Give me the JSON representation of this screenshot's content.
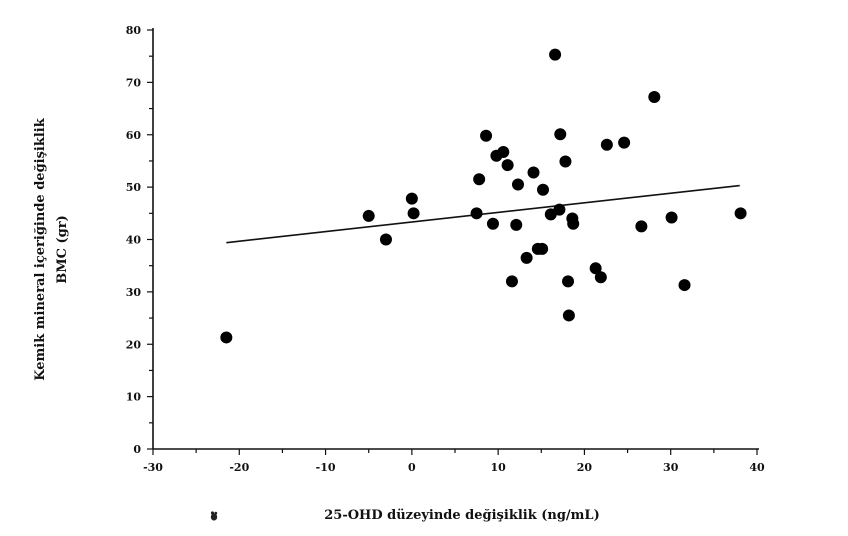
{
  "chart_data": {
    "type": "scatter",
    "title": "",
    "xlabel": "25-OHD düzeyinde değişiklik (ng/mL)",
    "ylabel_lines": [
      "Kemik mineral içeriğinde değişiklik",
      "BMC (gr)"
    ],
    "xlim": [
      -30,
      40
    ],
    "ylim": [
      0,
      80
    ],
    "xticks": [
      -30,
      -20,
      -10,
      0,
      10,
      20,
      30,
      40
    ],
    "yticks": [
      0,
      10,
      20,
      30,
      40,
      50,
      60,
      70,
      80
    ],
    "grid": false,
    "points": [
      {
        "x": -21.5,
        "y": 21.3
      },
      {
        "x": -5,
        "y": 44.5
      },
      {
        "x": -3,
        "y": 40
      },
      {
        "x": 0,
        "y": 47.8
      },
      {
        "x": 0.2,
        "y": 45
      },
      {
        "x": 7.5,
        "y": 45
      },
      {
        "x": 7.8,
        "y": 51.5
      },
      {
        "x": 8.6,
        "y": 59.8
      },
      {
        "x": 9.4,
        "y": 43
      },
      {
        "x": 9.8,
        "y": 56
      },
      {
        "x": 10.6,
        "y": 56.7
      },
      {
        "x": 11.1,
        "y": 54.2
      },
      {
        "x": 11.6,
        "y": 32
      },
      {
        "x": 12.1,
        "y": 42.8
      },
      {
        "x": 12.3,
        "y": 50.5
      },
      {
        "x": 13.3,
        "y": 36.5
      },
      {
        "x": 14.1,
        "y": 52.8
      },
      {
        "x": 14.6,
        "y": 38.2
      },
      {
        "x": 15.1,
        "y": 38.2
      },
      {
        "x": 15.2,
        "y": 49.5
      },
      {
        "x": 16.1,
        "y": 44.8
      },
      {
        "x": 16.6,
        "y": 75.3
      },
      {
        "x": 17.1,
        "y": 45.7
      },
      {
        "x": 17.2,
        "y": 60.1
      },
      {
        "x": 17.8,
        "y": 54.9
      },
      {
        "x": 18.1,
        "y": 32
      },
      {
        "x": 18.2,
        "y": 25.5
      },
      {
        "x": 18.6,
        "y": 44
      },
      {
        "x": 18.7,
        "y": 43
      },
      {
        "x": 21.3,
        "y": 34.5
      },
      {
        "x": 21.9,
        "y": 32.8
      },
      {
        "x": 22.6,
        "y": 58.1
      },
      {
        "x": 24.6,
        "y": 58.5
      },
      {
        "x": 26.6,
        "y": 42.5
      },
      {
        "x": 28.1,
        "y": 67.2
      },
      {
        "x": 30.1,
        "y": 44.2
      },
      {
        "x": 31.6,
        "y": 31.3
      },
      {
        "x": 38.1,
        "y": 45
      }
    ],
    "trendline": {
      "x": [
        -21.5,
        38
      ],
      "y": [
        39.4,
        50.3
      ]
    }
  }
}
